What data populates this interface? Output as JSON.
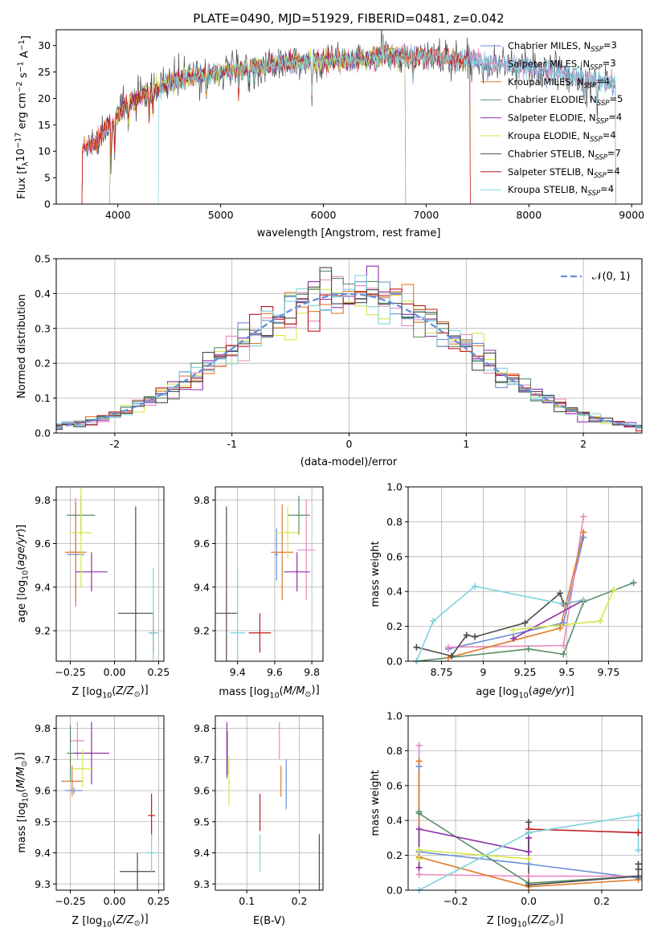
{
  "figure_title": "PLATE=0490, MJD=51929, FIBERID=0481, z=0.042",
  "model_colors": {
    "Chabrier MILES": "#6b8fd6",
    "Salpeter MILES": "#e88ac0",
    "Kroupa MILES": "#e07b2a",
    "Chabrier ELODIE": "#5a8f6a",
    "Salpeter ELODIE": "#8e2fa8",
    "Kroupa ELODIE": "#d4e84a",
    "Chabrier STELIB": "#4a4a4a",
    "Salpeter STELIB": "#c0171c",
    "Kroupa STELIB": "#7ed3dc"
  },
  "chart_data": [
    {
      "id": "spectrum",
      "type": "line",
      "title": "PLATE=0490, MJD=51929, FIBERID=0481, z=0.042",
      "xlabel": "wavelength [Angstrom, rest frame]",
      "ylabel": "Flux [f_λ 10^-17 erg cm^-2 s^-1 A^-1]",
      "xlim": [
        3400,
        9100
      ],
      "ylim": [
        0,
        33
      ],
      "xticks": [
        4000,
        5000,
        6000,
        7000,
        8000,
        9000
      ],
      "yticks": [
        0,
        5,
        10,
        15,
        20,
        25,
        30
      ],
      "legend_position": "right",
      "legend": [
        {
          "label": "Chabrier MILES, N_SSP=3",
          "text": "Chabrier MILES, N",
          "sub": "SSP",
          "tail": "=3",
          "color": "#6b8fd6"
        },
        {
          "label": "Salpeter MILES, N_SSP=3",
          "text": "Salpeter MILES, N",
          "sub": "SSP",
          "tail": "=3",
          "color": "#e88ac0"
        },
        {
          "label": "Kroupa MILES, N_SSP=4",
          "text": "Kroupa MILES, N",
          "sub": "SSP",
          "tail": "=4",
          "color": "#e07b2a"
        },
        {
          "label": "Chabrier ELODIE, N_SSP=5",
          "text": "Chabrier ELODIE, N",
          "sub": "SSP",
          "tail": "=5",
          "color": "#5a8f6a"
        },
        {
          "label": "Salpeter ELODIE, N_SSP=4",
          "text": "Salpeter ELODIE, N",
          "sub": "SSP",
          "tail": "=4",
          "color": "#8e2fa8"
        },
        {
          "label": "Kroupa ELODIE, N_SSP=4",
          "text": "Kroupa ELODIE, N",
          "sub": "SSP",
          "tail": "=4",
          "color": "#d4e84a"
        },
        {
          "label": "Chabrier STELIB, N_SSP=7",
          "text": "Chabrier STELIB, N",
          "sub": "SSP",
          "tail": "=7",
          "color": "#4a4a4a"
        },
        {
          "label": "Salpeter STELIB, N_SSP=4",
          "text": "Salpeter STELIB, N",
          "sub": "SSP",
          "tail": "=4",
          "color": "#c0171c"
        },
        {
          "label": "Kroupa STELIB, N_SSP=4",
          "text": "Kroupa STELIB, N",
          "sub": "SSP",
          "tail": "=4",
          "color": "#7ed3dc"
        }
      ],
      "continuum": [
        [
          3650,
          10.5
        ],
        [
          3800,
          12
        ],
        [
          3950,
          16
        ],
        [
          4100,
          19
        ],
        [
          4300,
          21
        ],
        [
          4500,
          23
        ],
        [
          4800,
          24.5
        ],
        [
          5200,
          25.5
        ],
        [
          5600,
          26.5
        ],
        [
          6000,
          27
        ],
        [
          6400,
          27.3
        ],
        [
          6600,
          28
        ],
        [
          7000,
          28
        ],
        [
          7500,
          27
        ],
        [
          8000,
          26
        ],
        [
          8500,
          24
        ],
        [
          8850,
          23
        ]
      ],
      "absorption_features": [
        [
          3934,
          7
        ],
        [
          3969,
          6
        ],
        [
          4102,
          4
        ],
        [
          4304,
          5
        ],
        [
          4340,
          4
        ],
        [
          4861,
          3
        ],
        [
          5175,
          5
        ],
        [
          5270,
          2
        ],
        [
          5890,
          6
        ],
        [
          6563,
          3
        ],
        [
          6870,
          4
        ],
        [
          7600,
          3
        ],
        [
          8542,
          5
        ],
        [
          8662,
          5
        ]
      ],
      "emission_features": [
        [
          6563,
          5
        ],
        [
          6583,
          3
        ]
      ],
      "cutoffs": [
        {
          "model": "Kroupa ELODIE",
          "min_x": 3920,
          "max_x": 6800
        },
        {
          "model": "Chabrier ELODIE",
          "min_x": 3920,
          "max_x": 6800
        },
        {
          "model": "Salpeter ELODIE",
          "min_x": 3920,
          "max_x": 6800
        },
        {
          "model": "Kroupa STELIB",
          "min_x": 4390,
          "max_x": 8850
        },
        {
          "model": "Salpeter STELIB",
          "min_x": 3650,
          "max_x": 7430
        },
        {
          "model": "Kroupa MILES",
          "min_x": 3650,
          "max_x": 7430
        }
      ]
    },
    {
      "id": "residual_hist",
      "type": "histogram",
      "xlabel": "(data-model)/error",
      "ylabel": "Normed distribution",
      "xlim": [
        -2.5,
        2.5
      ],
      "ylim": [
        0,
        0.5
      ],
      "xticks": [
        -2,
        -1,
        0,
        1,
        2
      ],
      "yticks": [
        0.0,
        0.1,
        0.2,
        0.3,
        0.4,
        0.5
      ],
      "bin_width": 0.1,
      "reference_curve": {
        "label": "𝒩(0, 1)",
        "mean": 0,
        "sigma": 1,
        "color": "#6a8fd8",
        "style": "dashed"
      },
      "legend_position": "top-right"
    },
    {
      "id": "age_vs_Z",
      "type": "errorbar",
      "xlabel": "Z [log10(Z/Z⊙)]",
      "ylabel": "age  [log10(age/yr)]",
      "xlim": [
        -0.33,
        0.28
      ],
      "ylim": [
        9.06,
        9.86
      ],
      "xticks": [
        -0.25,
        0.0,
        0.25
      ],
      "xticklabels": [
        "−0.25",
        "0.00",
        "0.25"
      ],
      "yticks": [
        9.2,
        9.4,
        9.6,
        9.8
      ],
      "points": [
        {
          "model": "Chabrier MILES",
          "x": -0.22,
          "xerr": 0.05,
          "y": 9.55,
          "yerr": 0.24
        },
        {
          "model": "Salpeter MILES",
          "x": -0.22,
          "xerr": 0.04,
          "y": 9.56,
          "yerr": 0.25
        },
        {
          "model": "Kroupa MILES",
          "x": -0.22,
          "xerr": 0.06,
          "y": 9.56,
          "yerr": 0.23
        },
        {
          "model": "Chabrier ELODIE",
          "x": -0.19,
          "xerr": 0.08,
          "y": 9.73,
          "yerr": 0.09
        },
        {
          "model": "Salpeter ELODIE",
          "x": -0.13,
          "xerr": 0.09,
          "y": 9.47,
          "yerr": 0.09
        },
        {
          "model": "Kroupa ELODIE",
          "x": -0.19,
          "xerr": 0.06,
          "y": 9.65,
          "yerr": 0.25
        },
        {
          "model": "Chabrier STELIB",
          "x": 0.12,
          "xerr": 0.1,
          "y": 9.28,
          "yerr": 0.49
        },
        {
          "model": "Salpeter STELIB",
          "x": 0.22,
          "xerr": 0.02,
          "y": 9.19,
          "yerr": 0.09
        },
        {
          "model": "Kroupa STELIB",
          "x": 0.22,
          "xerr": 0.03,
          "y": 9.19,
          "yerr": 0.3
        }
      ]
    },
    {
      "id": "age_vs_mass",
      "type": "errorbar",
      "xlabel": "mass [log10(M/M⊙)]",
      "ylabel": "",
      "xlim": [
        9.28,
        9.86
      ],
      "ylim": [
        9.06,
        9.86
      ],
      "xticks": [
        9.4,
        9.6,
        9.8
      ],
      "yticks": [
        9.2,
        9.4,
        9.6,
        9.8
      ],
      "points": [
        {
          "model": "Chabrier MILES",
          "x": 9.61,
          "xerr": 0.01,
          "y": 9.55,
          "yerr": 0.12
        },
        {
          "model": "Salpeter MILES",
          "x": 9.77,
          "xerr": 0.05,
          "y": 9.57,
          "yerr": 0.23
        },
        {
          "model": "Kroupa MILES",
          "x": 9.64,
          "xerr": 0.06,
          "y": 9.56,
          "yerr": 0.22
        },
        {
          "model": "Chabrier ELODIE",
          "x": 9.73,
          "xerr": 0.06,
          "y": 9.73,
          "yerr": 0.09
        },
        {
          "model": "Salpeter ELODIE",
          "x": 9.72,
          "xerr": 0.07,
          "y": 9.47,
          "yerr": 0.09
        },
        {
          "model": "Kroupa ELODIE",
          "x": 9.67,
          "xerr": 0.06,
          "y": 9.65,
          "yerr": 0.12
        },
        {
          "model": "Chabrier STELIB",
          "x": 9.34,
          "xerr": 0.06,
          "y": 9.28,
          "yerr": 0.49
        },
        {
          "model": "Salpeter STELIB",
          "x": 9.52,
          "xerr": 0.06,
          "y": 9.19,
          "yerr": 0.09
        },
        {
          "model": "Kroupa STELIB",
          "x": 9.4,
          "xerr": 0.04,
          "y": 9.19,
          "yerr": 0.3
        }
      ]
    },
    {
      "id": "weight_vs_age",
      "type": "line",
      "xlabel": "age  [log10(age/yr)]",
      "ylabel": "mass weight",
      "xlim": [
        8.55,
        9.95
      ],
      "ylim": [
        0,
        1
      ],
      "xticks": [
        8.75,
        9.0,
        9.25,
        9.5,
        9.75
      ],
      "yticks": [
        0.0,
        0.2,
        0.4,
        0.6,
        0.8,
        1.0
      ],
      "series": [
        {
          "model": "Chabrier MILES",
          "x": [
            8.79,
            9.48,
            9.6
          ],
          "y": [
            0.07,
            0.22,
            0.71
          ]
        },
        {
          "model": "Salpeter MILES",
          "x": [
            8.79,
            9.48,
            9.6
          ],
          "y": [
            0.08,
            0.09,
            0.83
          ]
        },
        {
          "model": "Kroupa MILES",
          "x": [
            8.79,
            9.46,
            9.6
          ],
          "y": [
            0.02,
            0.19,
            0.74
          ]
        },
        {
          "model": "Chabrier ELODIE",
          "x": [
            8.6,
            9.27,
            9.48,
            9.6,
            9.9
          ],
          "y": [
            0.0,
            0.07,
            0.04,
            0.34,
            0.45
          ]
        },
        {
          "model": "Salpeter ELODIE",
          "x": [
            9.18,
            9.6
          ],
          "y": [
            0.13,
            0.35
          ]
        },
        {
          "model": "Kroupa ELODIE",
          "x": [
            9.18,
            9.7,
            9.78
          ],
          "y": [
            0.18,
            0.23,
            0.41
          ]
        },
        {
          "model": "Chabrier STELIB",
          "x": [
            8.6,
            8.81,
            8.9,
            8.95,
            9.25,
            9.46,
            9.48
          ],
          "y": [
            0.08,
            0.03,
            0.15,
            0.14,
            0.22,
            0.39,
            0.33
          ]
        },
        {
          "model": "Salpeter STELIB",
          "x": [
            9.48,
            9.6
          ],
          "y": [
            0.33,
            0.35
          ]
        },
        {
          "model": "Kroupa STELIB",
          "x": [
            8.6,
            8.7,
            8.95,
            9.47,
            9.6
          ],
          "y": [
            0.0,
            0.23,
            0.43,
            0.33,
            0.35
          ]
        }
      ]
    },
    {
      "id": "mass_vs_Z",
      "type": "errorbar",
      "xlabel": "Z [log10(Z/Z⊙)]",
      "ylabel": "mass [log10(M/M⊙)]",
      "xlim": [
        -0.33,
        0.28
      ],
      "ylim": [
        9.28,
        9.84
      ],
      "xticks": [
        -0.25,
        0.0,
        0.25
      ],
      "xticklabels": [
        "−0.25",
        "0.00",
        "0.25"
      ],
      "yticks": [
        9.3,
        9.4,
        9.5,
        9.6,
        9.7,
        9.8
      ],
      "points": [
        {
          "model": "Chabrier MILES",
          "x": -0.23,
          "xerr": 0.05,
          "y": 9.6,
          "yerr": 0.01
        },
        {
          "model": "Salpeter MILES",
          "x": -0.21,
          "xerr": 0.04,
          "y": 9.76,
          "yerr": 0.06
        },
        {
          "model": "Kroupa MILES",
          "x": -0.24,
          "xerr": 0.06,
          "y": 9.63,
          "yerr": 0.05
        },
        {
          "model": "Chabrier ELODIE",
          "x": -0.25,
          "xerr": 0.02,
          "y": 9.72,
          "yerr": 0.09
        },
        {
          "model": "Salpeter ELODIE",
          "x": -0.13,
          "xerr": 0.1,
          "y": 9.72,
          "yerr": 0.1
        },
        {
          "model": "Kroupa ELODIE",
          "x": -0.18,
          "xerr": 0.06,
          "y": 9.67,
          "yerr": 0.06
        },
        {
          "model": "Chabrier STELIB",
          "x": 0.13,
          "xerr": 0.1,
          "y": 9.34,
          "yerr": 0.06
        },
        {
          "model": "Salpeter STELIB",
          "x": 0.21,
          "xerr": 0.02,
          "y": 9.52,
          "yerr": 0.07
        },
        {
          "model": "Kroupa STELIB",
          "x": 0.21,
          "xerr": 0.03,
          "y": 9.4,
          "yerr": 0.06
        }
      ]
    },
    {
      "id": "mass_vs_EBV",
      "type": "errorbar",
      "xlabel": "E(B-V)",
      "ylabel": "",
      "xlim": [
        0.04,
        0.245
      ],
      "ylim": [
        9.28,
        9.84
      ],
      "xticks": [
        0.1,
        0.2
      ],
      "yticks": [
        9.3,
        9.4,
        9.5,
        9.6,
        9.7,
        9.8
      ],
      "points": [
        {
          "model": "Chabrier MILES",
          "x": 0.175,
          "xerr": 0,
          "y": 9.62,
          "yerr": 0.08
        },
        {
          "model": "Salpeter MILES",
          "x": 0.162,
          "xerr": 0,
          "y": 9.76,
          "yerr": 0.06
        },
        {
          "model": "Kroupa MILES",
          "x": 0.165,
          "xerr": 0,
          "y": 9.63,
          "yerr": 0.05
        },
        {
          "model": "Chabrier ELODIE",
          "x": 0.063,
          "xerr": 0,
          "y": 9.72,
          "yerr": 0.07
        },
        {
          "model": "Salpeter ELODIE",
          "x": 0.062,
          "xerr": 0,
          "y": 9.73,
          "yerr": 0.09
        },
        {
          "model": "Kroupa ELODIE",
          "x": 0.066,
          "xerr": 0,
          "y": 9.63,
          "yerr": 0.08
        },
        {
          "model": "Chabrier STELIB",
          "x": 0.238,
          "xerr": 0,
          "y": 9.34,
          "yerr": 0.12
        },
        {
          "model": "Salpeter STELIB",
          "x": 0.125,
          "xerr": 0,
          "y": 9.53,
          "yerr": 0.06
        },
        {
          "model": "Kroupa STELIB",
          "x": 0.125,
          "xerr": 0,
          "y": 9.4,
          "yerr": 0.06
        }
      ]
    },
    {
      "id": "weight_vs_Z",
      "type": "line",
      "xlabel": "Z [log10(Z/Z⊙)]",
      "ylabel": "mass weight",
      "xlim": [
        -0.33,
        0.31
      ],
      "ylim": [
        0,
        1
      ],
      "xticks": [
        -0.2,
        0.0,
        0.2
      ],
      "xticklabels": [
        "−0.2",
        "0.0",
        "0.2"
      ],
      "yticks": [
        0.0,
        0.2,
        0.4,
        0.6,
        0.8,
        1.0
      ],
      "series": [
        {
          "model": "Chabrier MILES",
          "x": [
            -0.3,
            -0.3,
            0.0,
            0.3,
            0.3
          ],
          "y": [
            0.71,
            0.22,
            0.15,
            0.07,
            0.08
          ]
        },
        {
          "model": "Salpeter MILES",
          "x": [
            -0.3,
            -0.3,
            0.0,
            0.3
          ],
          "y": [
            0.83,
            0.09,
            0.08,
            0.08
          ]
        },
        {
          "model": "Kroupa MILES",
          "x": [
            -0.3,
            -0.3,
            0.0,
            0.3
          ],
          "y": [
            0.74,
            0.19,
            0.02,
            0.06
          ]
        },
        {
          "model": "Chabrier ELODIE",
          "x": [
            -0.3,
            -0.3,
            0.0,
            0.3
          ],
          "y": [
            0.45,
            0.44,
            0.04,
            0.08
          ]
        },
        {
          "model": "Salpeter ELODIE",
          "x": [
            -0.3,
            -0.3,
            0.0,
            0.0
          ],
          "y": [
            0.13,
            0.35,
            0.22,
            0.3
          ]
        },
        {
          "model": "Kroupa ELODIE",
          "x": [
            -0.3,
            -0.3,
            0.0
          ],
          "y": [
            0.18,
            0.23,
            0.18
          ]
        },
        {
          "model": "Chabrier STELIB",
          "x": [
            0.0,
            0.0,
            0.0,
            0.3,
            0.3,
            0.3
          ],
          "y": [
            0.39,
            0.33,
            0.03,
            0.08,
            0.12,
            0.15
          ]
        },
        {
          "model": "Salpeter STELIB",
          "x": [
            0.0,
            0.3
          ],
          "y": [
            0.35,
            0.33
          ]
        },
        {
          "model": "Kroupa STELIB",
          "x": [
            -0.3,
            0.0,
            0.3,
            0.3
          ],
          "y": [
            0.0,
            0.33,
            0.43,
            0.23
          ]
        }
      ]
    }
  ]
}
